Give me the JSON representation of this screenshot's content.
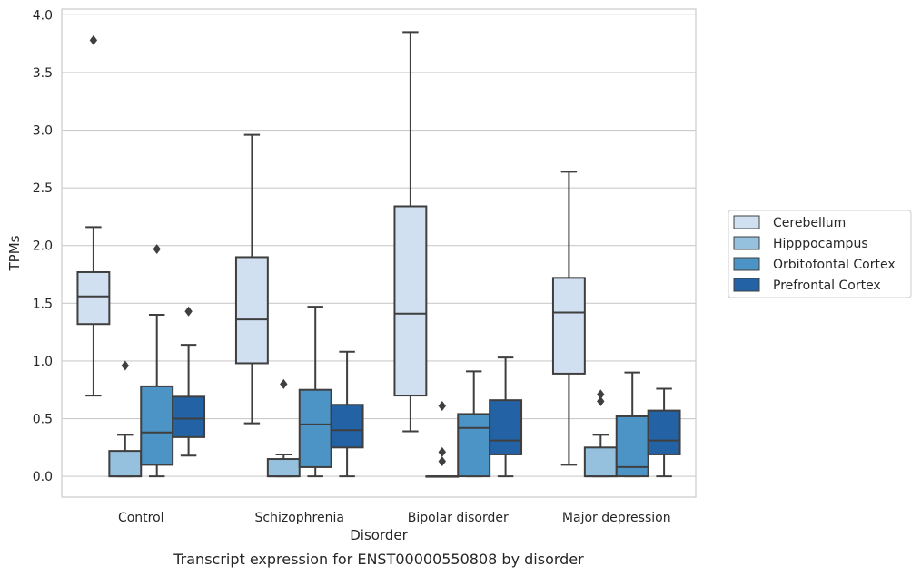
{
  "chart_data": {
    "type": "box",
    "caption": "Transcript expression for ENST00000550808 by disorder",
    "xlabel": "Disorder",
    "ylabel": "TPMs",
    "ylim": [
      -0.18,
      4.05
    ],
    "yticks": [
      "0.0",
      "0.5",
      "1.0",
      "1.5",
      "2.0",
      "2.5",
      "3.0",
      "3.5",
      "4.0"
    ],
    "grid": "horizontal",
    "legend_position": "right",
    "categories": [
      "Control",
      "Schizophrenia",
      "Bipolar disorder",
      "Major depression"
    ],
    "series": [
      {
        "name": "Cerebellum",
        "color": "#d1e0f1",
        "boxes": [
          {
            "whislo": 0.7,
            "q1": 1.32,
            "med": 1.56,
            "q3": 1.77,
            "whishi": 2.16,
            "fliers": [
              3.78
            ]
          },
          {
            "whislo": 0.46,
            "q1": 0.98,
            "med": 1.36,
            "q3": 1.9,
            "whishi": 2.96,
            "fliers": []
          },
          {
            "whislo": 0.39,
            "q1": 0.7,
            "med": 1.41,
            "q3": 2.34,
            "whishi": 3.85,
            "fliers": []
          },
          {
            "whislo": 0.1,
            "q1": 0.89,
            "med": 1.42,
            "q3": 1.72,
            "whishi": 2.64,
            "fliers": []
          }
        ]
      },
      {
        "name": "Hipppocampus",
        "color": "#95c0de",
        "boxes": [
          {
            "whislo": 0.0,
            "q1": 0.0,
            "med": 0.0,
            "q3": 0.22,
            "whishi": 0.36,
            "fliers": [
              0.96
            ]
          },
          {
            "whislo": 0.0,
            "q1": 0.0,
            "med": 0.0,
            "q3": 0.15,
            "whishi": 0.19,
            "fliers": [
              0.8
            ]
          },
          {
            "whislo": 0.0,
            "q1": 0.0,
            "med": 0.0,
            "q3": 0.0,
            "whishi": 0.0,
            "fliers": [
              0.13,
              0.21,
              0.61
            ]
          },
          {
            "whislo": 0.0,
            "q1": 0.0,
            "med": 0.0,
            "q3": 0.25,
            "whishi": 0.36,
            "fliers": [
              0.65,
              0.71
            ]
          }
        ]
      },
      {
        "name": "Orbitofontal Cortex",
        "color": "#4d94c6",
        "boxes": [
          {
            "whislo": 0.0,
            "q1": 0.1,
            "med": 0.38,
            "q3": 0.78,
            "whishi": 1.4,
            "fliers": [
              1.97
            ]
          },
          {
            "whislo": 0.0,
            "q1": 0.08,
            "med": 0.45,
            "q3": 0.75,
            "whishi": 1.47,
            "fliers": []
          },
          {
            "whislo": 0.0,
            "q1": 0.0,
            "med": 0.42,
            "q3": 0.54,
            "whishi": 0.91,
            "fliers": []
          },
          {
            "whislo": 0.0,
            "q1": 0.0,
            "med": 0.08,
            "q3": 0.52,
            "whishi": 0.9,
            "fliers": []
          }
        ]
      },
      {
        "name": "Prefrontal Cortex",
        "color": "#2363a5",
        "boxes": [
          {
            "whislo": 0.18,
            "q1": 0.34,
            "med": 0.5,
            "q3": 0.69,
            "whishi": 1.14,
            "fliers": [
              1.43
            ]
          },
          {
            "whislo": 0.0,
            "q1": 0.25,
            "med": 0.4,
            "q3": 0.62,
            "whishi": 1.08,
            "fliers": []
          },
          {
            "whislo": 0.0,
            "q1": 0.19,
            "med": 0.31,
            "q3": 0.66,
            "whishi": 1.03,
            "fliers": []
          },
          {
            "whislo": 0.0,
            "q1": 0.19,
            "med": 0.31,
            "q3": 0.57,
            "whishi": 0.76,
            "fliers": []
          }
        ]
      }
    ]
  }
}
